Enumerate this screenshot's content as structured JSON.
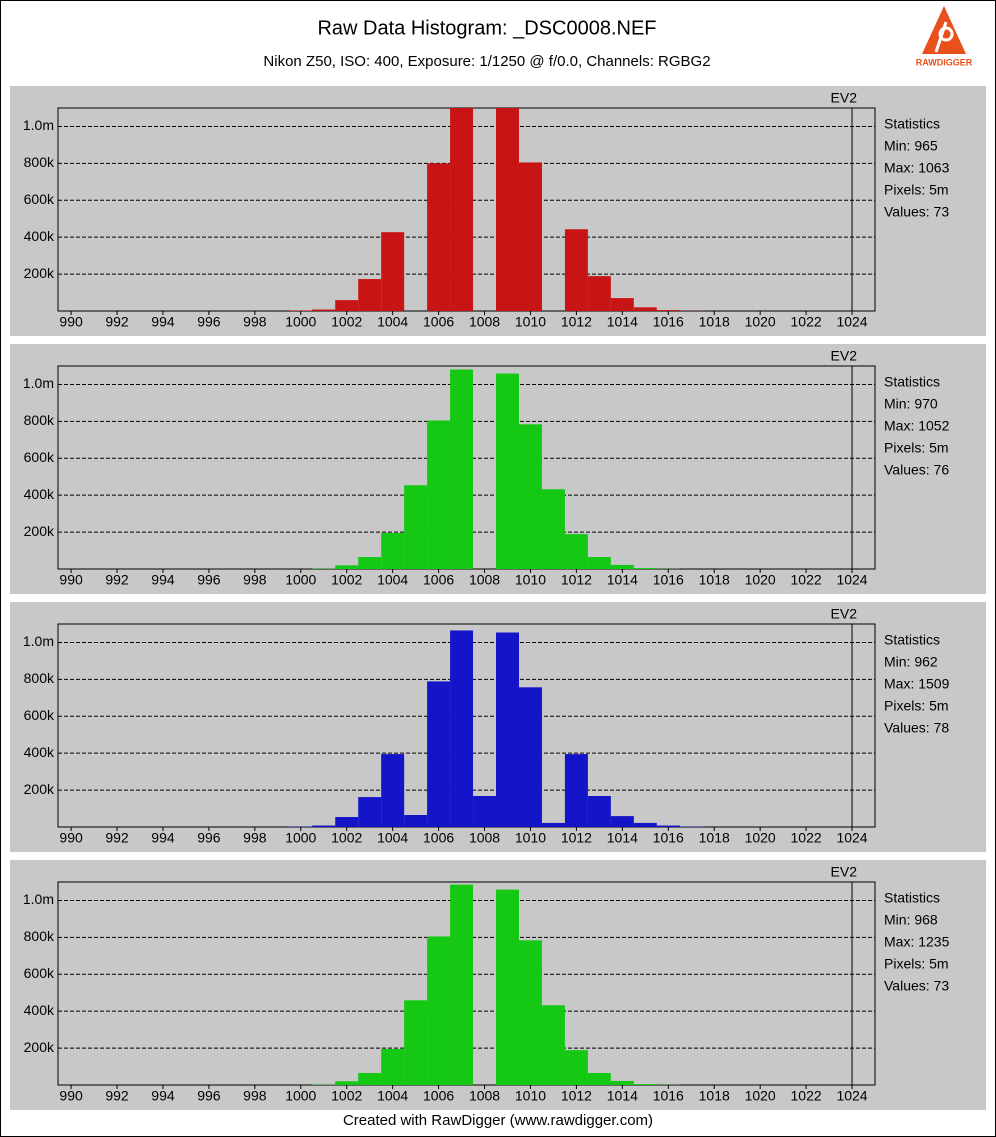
{
  "title": "Raw Data Histogram: _DSC0008.NEF",
  "subtitle": "Nikon Z50, ISO: 400, Exposure: 1/1250 @ f/0.0, Channels: RGBG2",
  "footer": "Created with RawDigger (www.rawdigger.com)",
  "logo_text": "RAWDIGGER",
  "chart_data": [
    {
      "type": "histogram",
      "label": "EV2",
      "color": "#c81414",
      "bins": [
        999.5,
        1000.5,
        1001.5,
        1002.5,
        1003.5,
        1004.5,
        1005.5,
        1006.5,
        1007.5,
        1008.5,
        1009.5,
        1010.5,
        1011.5,
        1012.5,
        1013.5,
        1014.5,
        1015.5,
        1016.5,
        1017.5
      ],
      "values": [
        3000,
        8000,
        59000,
        173000,
        427000,
        0,
        800000,
        1100000,
        0,
        1100000,
        805000,
        0,
        443000,
        189000,
        70000,
        20000,
        5000,
        1000
      ],
      "xlim": [
        989.43,
        1025
      ],
      "ylim": [
        0,
        1100000
      ],
      "xticks": [
        990,
        992,
        994,
        996,
        998,
        1000,
        1002,
        1004,
        1006,
        1008,
        1010,
        1012,
        1014,
        1016,
        1018,
        1020,
        1022,
        1024
      ],
      "yticks": [
        {
          "value": 200000,
          "label": "200k"
        },
        {
          "value": 400000,
          "label": "400k"
        },
        {
          "value": 600000,
          "label": "600k"
        },
        {
          "value": 800000,
          "label": "800k"
        },
        {
          "value": 1000000,
          "label": "1.0m"
        }
      ],
      "grid": true,
      "stats": [
        "Statistics",
        "Min: 965",
        "Max: 1063",
        "Pixels: 5m",
        "Values: 73"
      ]
    },
    {
      "type": "histogram",
      "label": "EV2",
      "color": "#14c814",
      "bins": [
        999.5,
        1000.5,
        1001.5,
        1002.5,
        1003.5,
        1004.5,
        1005.5,
        1006.5,
        1007.5,
        1008.5,
        1009.5,
        1010.5,
        1011.5,
        1012.5,
        1013.5,
        1014.5,
        1015.5,
        1016.5,
        1017.5
      ],
      "values": [
        0,
        2000,
        20000,
        65000,
        195000,
        454000,
        805000,
        1081000,
        0,
        1059000,
        784000,
        432000,
        189000,
        65000,
        22000,
        5000,
        1000,
        0
      ],
      "xlim": [
        989.43,
        1025
      ],
      "ylim": [
        0,
        1100000
      ],
      "xticks": [
        990,
        992,
        994,
        996,
        998,
        1000,
        1002,
        1004,
        1006,
        1008,
        1010,
        1012,
        1014,
        1016,
        1018,
        1020,
        1022,
        1024
      ],
      "yticks": [
        {
          "value": 200000,
          "label": "200k"
        },
        {
          "value": 400000,
          "label": "400k"
        },
        {
          "value": 600000,
          "label": "600k"
        },
        {
          "value": 800000,
          "label": "800k"
        },
        {
          "value": 1000000,
          "label": "1.0m"
        }
      ],
      "grid": true,
      "stats": [
        "Statistics",
        "Min: 970",
        "Max: 1052",
        "Pixels: 5m",
        "Values: 76"
      ]
    },
    {
      "type": "histogram",
      "label": "EV2",
      "color": "#1414c8",
      "bins": [
        999.5,
        1000.5,
        1001.5,
        1002.5,
        1003.5,
        1004.5,
        1005.5,
        1006.5,
        1007.5,
        1008.5,
        1009.5,
        1010.5,
        1011.5,
        1012.5,
        1013.5,
        1014.5,
        1015.5,
        1016.5,
        1017.5
      ],
      "values": [
        2000,
        8000,
        54000,
        162000,
        395000,
        65000,
        789000,
        1065000,
        168000,
        1054000,
        757000,
        22000,
        395000,
        168000,
        59000,
        22000,
        8000,
        2000
      ],
      "xlim": [
        989.43,
        1025
      ],
      "ylim": [
        0,
        1100000
      ],
      "xticks": [
        990,
        992,
        994,
        996,
        998,
        1000,
        1002,
        1004,
        1006,
        1008,
        1010,
        1012,
        1014,
        1016,
        1018,
        1020,
        1022,
        1024
      ],
      "yticks": [
        {
          "value": 200000,
          "label": "200k"
        },
        {
          "value": 400000,
          "label": "400k"
        },
        {
          "value": 600000,
          "label": "600k"
        },
        {
          "value": 800000,
          "label": "800k"
        },
        {
          "value": 1000000,
          "label": "1.0m"
        }
      ],
      "grid": true,
      "stats": [
        "Statistics",
        "Min: 962",
        "Max: 1509",
        "Pixels: 5m",
        "Values: 78"
      ]
    },
    {
      "type": "histogram",
      "label": "EV2",
      "color": "#14c814",
      "bins": [
        999.5,
        1000.5,
        1001.5,
        1002.5,
        1003.5,
        1004.5,
        1005.5,
        1006.5,
        1007.5,
        1008.5,
        1009.5,
        1010.5,
        1011.5,
        1012.5,
        1013.5,
        1014.5,
        1015.5,
        1016.5,
        1017.5
      ],
      "values": [
        0,
        2000,
        20000,
        65000,
        195000,
        459000,
        805000,
        1086000,
        0,
        1059000,
        784000,
        432000,
        189000,
        65000,
        22000,
        5000,
        1000,
        0
      ],
      "xlim": [
        989.43,
        1025
      ],
      "ylim": [
        0,
        1100000
      ],
      "xticks": [
        990,
        992,
        994,
        996,
        998,
        1000,
        1002,
        1004,
        1006,
        1008,
        1010,
        1012,
        1014,
        1016,
        1018,
        1020,
        1022,
        1024
      ],
      "yticks": [
        {
          "value": 200000,
          "label": "200k"
        },
        {
          "value": 400000,
          "label": "400k"
        },
        {
          "value": 600000,
          "label": "600k"
        },
        {
          "value": 800000,
          "label": "800k"
        },
        {
          "value": 1000000,
          "label": "1.0m"
        }
      ],
      "grid": true,
      "stats": [
        "Statistics",
        "Min: 968",
        "Max: 1235",
        "Pixels: 5m",
        "Values: 73"
      ]
    }
  ]
}
